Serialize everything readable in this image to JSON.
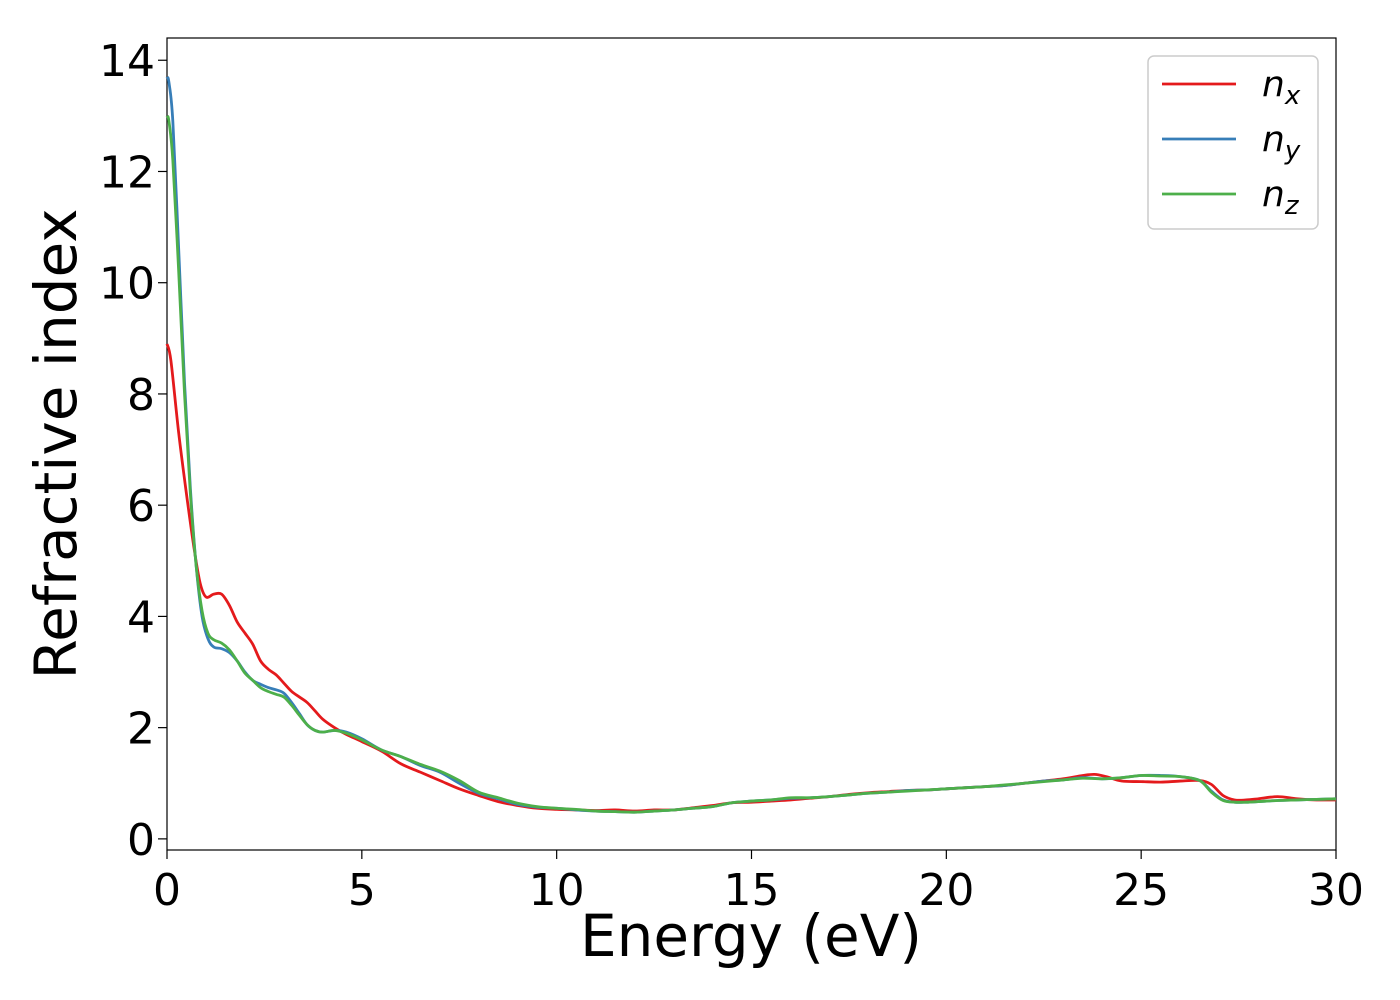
{
  "chart_data": {
    "type": "line",
    "xlabel": "Energy (eV)",
    "ylabel": "Refractive index",
    "xlim": [
      0,
      30
    ],
    "ylim": [
      -0.2,
      14.4
    ],
    "xticks": [
      0,
      5,
      10,
      15,
      20,
      25,
      30
    ],
    "yticks": [
      0,
      2,
      4,
      6,
      8,
      10,
      12,
      14
    ],
    "grid": false,
    "legend_position": "top-right",
    "series": [
      {
        "name": "n",
        "subscript": "x",
        "color": "#e41a1c",
        "x": [
          0,
          0.1,
          0.3,
          0.5,
          0.7,
          0.85,
          1.0,
          1.2,
          1.4,
          1.6,
          1.8,
          2.0,
          2.2,
          2.4,
          2.6,
          2.8,
          3.0,
          3.2,
          3.4,
          3.6,
          3.8,
          4.0,
          4.3,
          4.6,
          5.0,
          5.5,
          6.0,
          6.5,
          7.0,
          7.5,
          8.0,
          8.5,
          9.0,
          9.5,
          10.0,
          10.5,
          11.0,
          11.5,
          12.0,
          12.5,
          13.0,
          13.5,
          14.0,
          14.5,
          15.0,
          15.5,
          16.0,
          16.5,
          17.0,
          17.5,
          18.0,
          18.5,
          19.0,
          19.5,
          20.0,
          20.5,
          21.0,
          21.5,
          22.0,
          22.5,
          23.0,
          23.5,
          23.8,
          24.1,
          24.5,
          25.0,
          25.5,
          26.0,
          26.5,
          26.8,
          27.1,
          27.4,
          27.7,
          28.0,
          28.5,
          29.0,
          29.5,
          30.0
        ],
        "y": [
          8.9,
          8.6,
          7.3,
          6.2,
          5.2,
          4.6,
          4.35,
          4.4,
          4.4,
          4.2,
          3.9,
          3.7,
          3.5,
          3.2,
          3.05,
          2.95,
          2.8,
          2.65,
          2.55,
          2.45,
          2.3,
          2.15,
          2.0,
          1.88,
          1.75,
          1.58,
          1.35,
          1.2,
          1.05,
          0.9,
          0.78,
          0.67,
          0.6,
          0.55,
          0.53,
          0.52,
          0.51,
          0.52,
          0.5,
          0.52,
          0.52,
          0.56,
          0.6,
          0.65,
          0.66,
          0.68,
          0.7,
          0.73,
          0.76,
          0.8,
          0.83,
          0.85,
          0.87,
          0.88,
          0.9,
          0.92,
          0.94,
          0.96,
          1.0,
          1.04,
          1.08,
          1.14,
          1.16,
          1.12,
          1.04,
          1.03,
          1.02,
          1.04,
          1.05,
          0.98,
          0.78,
          0.7,
          0.7,
          0.72,
          0.76,
          0.72,
          0.7,
          0.7
        ]
      },
      {
        "name": "n",
        "subscript": "y",
        "color": "#377eb8",
        "x": [
          0,
          0.05,
          0.15,
          0.3,
          0.45,
          0.6,
          0.75,
          0.9,
          1.05,
          1.2,
          1.4,
          1.6,
          1.8,
          2.0,
          2.2,
          2.4,
          2.6,
          2.8,
          3.0,
          3.2,
          3.4,
          3.6,
          3.8,
          4.0,
          4.3,
          4.6,
          5.0,
          5.5,
          6.0,
          6.5,
          7.0,
          7.5,
          8.0,
          8.5,
          9.0,
          9.5,
          10.0,
          10.5,
          11.0,
          11.5,
          12.0,
          12.5,
          13.0,
          13.5,
          14.0,
          14.5,
          15.0,
          15.5,
          16.0,
          16.5,
          17.0,
          17.5,
          18.0,
          18.5,
          19.0,
          19.5,
          20.0,
          20.5,
          21.0,
          21.5,
          22.0,
          22.5,
          23.0,
          23.5,
          24.0,
          24.5,
          25.0,
          25.5,
          26.0,
          26.5,
          26.8,
          27.1,
          27.4,
          27.7,
          28.0,
          28.5,
          29.0,
          29.5,
          30.0
        ],
        "y": [
          13.7,
          13.6,
          12.9,
          10.6,
          8.2,
          6.3,
          4.9,
          4.0,
          3.6,
          3.45,
          3.42,
          3.35,
          3.2,
          3.0,
          2.85,
          2.78,
          2.72,
          2.68,
          2.62,
          2.45,
          2.25,
          2.05,
          1.95,
          1.92,
          1.95,
          1.92,
          1.8,
          1.6,
          1.48,
          1.32,
          1.2,
          1.0,
          0.82,
          0.72,
          0.62,
          0.57,
          0.55,
          0.52,
          0.5,
          0.49,
          0.48,
          0.5,
          0.52,
          0.55,
          0.58,
          0.65,
          0.68,
          0.7,
          0.73,
          0.74,
          0.76,
          0.79,
          0.82,
          0.84,
          0.87,
          0.88,
          0.9,
          0.92,
          0.94,
          0.96,
          1.0,
          1.04,
          1.06,
          1.1,
          1.08,
          1.1,
          1.14,
          1.14,
          1.12,
          1.05,
          0.86,
          0.7,
          0.66,
          0.66,
          0.67,
          0.69,
          0.7,
          0.71,
          0.72
        ]
      },
      {
        "name": "n",
        "subscript": "z",
        "color": "#4daf4a",
        "x": [
          0,
          0.05,
          0.15,
          0.3,
          0.45,
          0.6,
          0.75,
          0.9,
          1.05,
          1.2,
          1.4,
          1.6,
          1.8,
          2.0,
          2.2,
          2.4,
          2.6,
          2.8,
          3.0,
          3.2,
          3.4,
          3.6,
          3.8,
          4.0,
          4.3,
          4.6,
          5.0,
          5.5,
          6.0,
          6.5,
          7.0,
          7.5,
          8.0,
          8.5,
          9.0,
          9.5,
          10.0,
          10.5,
          11.0,
          11.5,
          12.0,
          12.5,
          13.0,
          13.5,
          14.0,
          14.5,
          15.0,
          15.5,
          16.0,
          16.5,
          17.0,
          17.5,
          18.0,
          18.5,
          19.0,
          19.5,
          20.0,
          20.5,
          21.0,
          21.5,
          22.0,
          22.5,
          23.0,
          23.5,
          24.0,
          24.5,
          25.0,
          25.5,
          26.0,
          26.5,
          26.8,
          27.1,
          27.4,
          27.7,
          28.0,
          28.5,
          29.0,
          29.5,
          30.0
        ],
        "y": [
          13.0,
          12.9,
          12.2,
          10.2,
          8.0,
          6.2,
          4.9,
          4.1,
          3.7,
          3.58,
          3.52,
          3.4,
          3.2,
          2.98,
          2.85,
          2.72,
          2.65,
          2.6,
          2.55,
          2.4,
          2.22,
          2.05,
          1.95,
          1.92,
          1.95,
          1.9,
          1.78,
          1.6,
          1.48,
          1.34,
          1.22,
          1.05,
          0.84,
          0.74,
          0.64,
          0.58,
          0.55,
          0.53,
          0.5,
          0.49,
          0.48,
          0.5,
          0.52,
          0.55,
          0.58,
          0.65,
          0.68,
          0.7,
          0.74,
          0.74,
          0.76,
          0.79,
          0.82,
          0.84,
          0.86,
          0.88,
          0.9,
          0.92,
          0.94,
          0.97,
          1.0,
          1.03,
          1.06,
          1.09,
          1.08,
          1.1,
          1.14,
          1.13,
          1.12,
          1.05,
          0.84,
          0.69,
          0.66,
          0.66,
          0.67,
          0.69,
          0.7,
          0.71,
          0.72
        ]
      }
    ]
  }
}
